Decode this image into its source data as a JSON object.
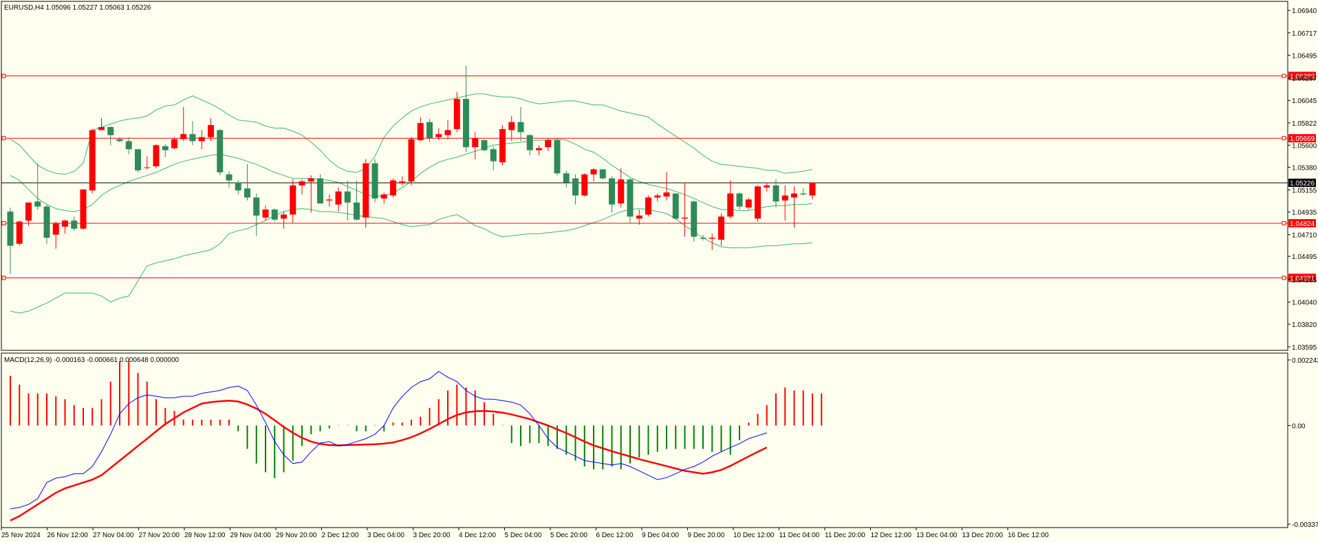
{
  "chart_data": {
    "type": "candlestick",
    "title": "EURUSD,H4  1.05096 1.05227 1.05063 1.05226",
    "price_axis": {
      "range": [
        1.0356,
        1.0703
      ],
      "ticks": [
        "1.06940",
        "1.06717",
        "1.06495",
        "1.06267",
        "1.06045",
        "1.05822",
        "1.05600",
        "1.05380",
        "1.05155",
        "1.04935",
        "1.04710",
        "1.04495",
        "1.04265",
        "1.04040",
        "1.03820",
        "1.03595"
      ]
    },
    "current_price": {
      "value": 1.05226,
      "label": "1.05226",
      "color": "#000000"
    },
    "horizontal_levels": [
      {
        "value": 1.06289,
        "label": "1.06289"
      },
      {
        "value": 1.05669,
        "label": "1.05669"
      },
      {
        "value": 1.04824,
        "label": "1.04824"
      },
      {
        "value": 1.04281,
        "label": "1.04281"
      }
    ],
    "level_color": "#FF0000",
    "bull_color": "#FF0000",
    "bear_color": "#2E8B57",
    "bollinger_color": "#3CB371",
    "time_labels": [
      "25 Nov 2024",
      "26 Nov 12:00",
      "27 Nov 04:00",
      "27 Nov 20:00",
      "28 Nov 12:00",
      "29 Nov 04:00",
      "29 Nov 20:00",
      "2 Dec 12:00",
      "3 Dec 04:00",
      "3 Dec 20:00",
      "4 Dec 12:00",
      "5 Dec 04:00",
      "5 Dec 20:00",
      "6 Dec 12:00",
      "9 Dec 04:00",
      "9 Dec 20:00",
      "10 Dec 12:00",
      "11 Dec 04:00",
      "11 Dec 20:00",
      "12 Dec 12:00",
      "13 Dec 04:00",
      "13 Dec 20:00",
      "16 Dec 12:00"
    ],
    "candles": [
      {
        "o": 1.0494,
        "h": 1.0498,
        "l": 1.0432,
        "c": 1.046
      },
      {
        "o": 1.0462,
        "h": 1.0485,
        "l": 1.046,
        "c": 1.0484
      },
      {
        "o": 1.0485,
        "h": 1.0503,
        "l": 1.048,
        "c": 1.0503
      },
      {
        "o": 1.0504,
        "h": 1.0542,
        "l": 1.0496,
        "c": 1.0499
      },
      {
        "o": 1.0499,
        "h": 1.0501,
        "l": 1.0462,
        "c": 1.0468
      },
      {
        "o": 1.0471,
        "h": 1.0484,
        "l": 1.0457,
        "c": 1.0482
      },
      {
        "o": 1.0479,
        "h": 1.0486,
        "l": 1.0472,
        "c": 1.0485
      },
      {
        "o": 1.0485,
        "h": 1.0489,
        "l": 1.0475,
        "c": 1.0477
      },
      {
        "o": 1.0477,
        "h": 1.0516,
        "l": 1.0476,
        "c": 1.0516
      },
      {
        "o": 1.0515,
        "h": 1.0576,
        "l": 1.0512,
        "c": 1.0575
      },
      {
        "o": 1.0575,
        "h": 1.0587,
        "l": 1.0575,
        "c": 1.0578
      },
      {
        "o": 1.0578,
        "h": 1.0579,
        "l": 1.056,
        "c": 1.057
      },
      {
        "o": 1.0566,
        "h": 1.0568,
        "l": 1.0563,
        "c": 1.0564
      },
      {
        "o": 1.0564,
        "h": 1.0568,
        "l": 1.0551,
        "c": 1.0556
      },
      {
        "o": 1.0556,
        "h": 1.0556,
        "l": 1.0533,
        "c": 1.0535
      },
      {
        "o": 1.0538,
        "h": 1.0549,
        "l": 1.0536,
        "c": 1.0538
      },
      {
        "o": 1.0539,
        "h": 1.0561,
        "l": 1.0537,
        "c": 1.056
      },
      {
        "o": 1.0559,
        "h": 1.0561,
        "l": 1.0548,
        "c": 1.0555
      },
      {
        "o": 1.0557,
        "h": 1.0568,
        "l": 1.0556,
        "c": 1.0566
      },
      {
        "o": 1.0566,
        "h": 1.0598,
        "l": 1.0564,
        "c": 1.0571
      },
      {
        "o": 1.0571,
        "h": 1.0584,
        "l": 1.056,
        "c": 1.0564
      },
      {
        "o": 1.0564,
        "h": 1.0575,
        "l": 1.0556,
        "c": 1.0568
      },
      {
        "o": 1.0568,
        "h": 1.0587,
        "l": 1.0564,
        "c": 1.058
      },
      {
        "o": 1.0575,
        "h": 1.0576,
        "l": 1.053,
        "c": 1.0533
      },
      {
        "o": 1.0531,
        "h": 1.0534,
        "l": 1.0518,
        "c": 1.0525
      },
      {
        "o": 1.0523,
        "h": 1.0525,
        "l": 1.0511,
        "c": 1.0515
      },
      {
        "o": 1.0517,
        "h": 1.0541,
        "l": 1.0505,
        "c": 1.0508
      },
      {
        "o": 1.0508,
        "h": 1.0512,
        "l": 1.047,
        "c": 1.049
      },
      {
        "o": 1.0488,
        "h": 1.05,
        "l": 1.0485,
        "c": 1.0496
      },
      {
        "o": 1.0496,
        "h": 1.0497,
        "l": 1.0484,
        "c": 1.0486
      },
      {
        "o": 1.0487,
        "h": 1.0494,
        "l": 1.0477,
        "c": 1.0491
      },
      {
        "o": 1.0491,
        "h": 1.0526,
        "l": 1.0483,
        "c": 1.052
      },
      {
        "o": 1.052,
        "h": 1.0526,
        "l": 1.0511,
        "c": 1.0524
      },
      {
        "o": 1.0524,
        "h": 1.053,
        "l": 1.0493,
        "c": 1.0527
      },
      {
        "o": 1.0527,
        "h": 1.0531,
        "l": 1.0502,
        "c": 1.0502
      },
      {
        "o": 1.0505,
        "h": 1.0511,
        "l": 1.0499,
        "c": 1.0506
      },
      {
        "o": 1.0501,
        "h": 1.0518,
        "l": 1.0494,
        "c": 1.0514
      },
      {
        "o": 1.0514,
        "h": 1.0525,
        "l": 1.0485,
        "c": 1.0503
      },
      {
        "o": 1.0503,
        "h": 1.0525,
        "l": 1.0485,
        "c": 1.0486
      },
      {
        "o": 1.0488,
        "h": 1.0546,
        "l": 1.0478,
        "c": 1.0542
      },
      {
        "o": 1.0542,
        "h": 1.0546,
        "l": 1.0503,
        "c": 1.0507
      },
      {
        "o": 1.0507,
        "h": 1.0513,
        "l": 1.0502,
        "c": 1.0511
      },
      {
        "o": 1.051,
        "h": 1.0527,
        "l": 1.0508,
        "c": 1.0525
      },
      {
        "o": 1.0522,
        "h": 1.0529,
        "l": 1.052,
        "c": 1.0524
      },
      {
        "o": 1.0524,
        "h": 1.0568,
        "l": 1.052,
        "c": 1.0566
      },
      {
        "o": 1.0565,
        "h": 1.0588,
        "l": 1.0564,
        "c": 1.0582
      },
      {
        "o": 1.0583,
        "h": 1.0586,
        "l": 1.0563,
        "c": 1.0567
      },
      {
        "o": 1.0568,
        "h": 1.0577,
        "l": 1.0565,
        "c": 1.0571
      },
      {
        "o": 1.057,
        "h": 1.0585,
        "l": 1.0566,
        "c": 1.0575
      },
      {
        "o": 1.0576,
        "h": 1.0613,
        "l": 1.0573,
        "c": 1.0606
      },
      {
        "o": 1.0606,
        "h": 1.0639,
        "l": 1.0553,
        "c": 1.0558
      },
      {
        "o": 1.0558,
        "h": 1.0573,
        "l": 1.0546,
        "c": 1.0567
      },
      {
        "o": 1.0565,
        "h": 1.0566,
        "l": 1.0554,
        "c": 1.0555
      },
      {
        "o": 1.0556,
        "h": 1.0559,
        "l": 1.0535,
        "c": 1.0544
      },
      {
        "o": 1.0543,
        "h": 1.058,
        "l": 1.054,
        "c": 1.0576
      },
      {
        "o": 1.0575,
        "h": 1.0589,
        "l": 1.0564,
        "c": 1.0583
      },
      {
        "o": 1.0583,
        "h": 1.0598,
        "l": 1.0564,
        "c": 1.0573
      },
      {
        "o": 1.057,
        "h": 1.0571,
        "l": 1.055,
        "c": 1.0555
      },
      {
        "o": 1.0555,
        "h": 1.056,
        "l": 1.055,
        "c": 1.0557
      },
      {
        "o": 1.0558,
        "h": 1.0567,
        "l": 1.0554,
        "c": 1.0565
      },
      {
        "o": 1.0565,
        "h": 1.0567,
        "l": 1.053,
        "c": 1.0532
      },
      {
        "o": 1.0532,
        "h": 1.0535,
        "l": 1.0518,
        "c": 1.0523
      },
      {
        "o": 1.0527,
        "h": 1.0531,
        "l": 1.0501,
        "c": 1.051
      },
      {
        "o": 1.051,
        "h": 1.0532,
        "l": 1.0509,
        "c": 1.0531
      },
      {
        "o": 1.0531,
        "h": 1.0537,
        "l": 1.0524,
        "c": 1.0536
      },
      {
        "o": 1.0536,
        "h": 1.0536,
        "l": 1.0526,
        "c": 1.0527
      },
      {
        "o": 1.0527,
        "h": 1.0529,
        "l": 1.0493,
        "c": 1.0501
      },
      {
        "o": 1.0502,
        "h": 1.0537,
        "l": 1.0498,
        "c": 1.0526
      },
      {
        "o": 1.0526,
        "h": 1.0527,
        "l": 1.0483,
        "c": 1.0489
      },
      {
        "o": 1.0487,
        "h": 1.0496,
        "l": 1.0481,
        "c": 1.049
      },
      {
        "o": 1.0491,
        "h": 1.051,
        "l": 1.0489,
        "c": 1.0508
      },
      {
        "o": 1.0508,
        "h": 1.0512,
        "l": 1.0504,
        "c": 1.051
      },
      {
        "o": 1.0509,
        "h": 1.0533,
        "l": 1.0505,
        "c": 1.0513
      },
      {
        "o": 1.0512,
        "h": 1.0512,
        "l": 1.0486,
        "c": 1.0487
      },
      {
        "o": 1.0487,
        "h": 1.0522,
        "l": 1.0469,
        "c": 1.0488
      },
      {
        "o": 1.0504,
        "h": 1.0505,
        "l": 1.0464,
        "c": 1.0469
      },
      {
        "o": 1.0468,
        "h": 1.0471,
        "l": 1.0465,
        "c": 1.0467
      },
      {
        "o": 1.0467,
        "h": 1.0472,
        "l": 1.0456,
        "c": 1.0468
      },
      {
        "o": 1.0466,
        "h": 1.0492,
        "l": 1.046,
        "c": 1.0489
      },
      {
        "o": 1.0489,
        "h": 1.0525,
        "l": 1.0487,
        "c": 1.0512
      },
      {
        "o": 1.0512,
        "h": 1.0513,
        "l": 1.0496,
        "c": 1.0499
      },
      {
        "o": 1.0498,
        "h": 1.0508,
        "l": 1.0496,
        "c": 1.0506
      },
      {
        "o": 1.0487,
        "h": 1.052,
        "l": 1.0484,
        "c": 1.0519
      },
      {
        "o": 1.0518,
        "h": 1.0522,
        "l": 1.0514,
        "c": 1.052
      },
      {
        "o": 1.052,
        "h": 1.0526,
        "l": 1.0498,
        "c": 1.0504
      },
      {
        "o": 1.0505,
        "h": 1.052,
        "l": 1.0485,
        "c": 1.051
      },
      {
        "o": 1.0508,
        "h": 1.0519,
        "l": 1.0478,
        "c": 1.0512
      },
      {
        "o": 1.0512,
        "h": 1.0517,
        "l": 1.051,
        "c": 1.0511
      },
      {
        "o": 1.051,
        "h": 1.0523,
        "l": 1.0506,
        "c": 1.0523
      }
    ],
    "bollinger_upper": [
      1.0566,
      1.056,
      1.055,
      1.054,
      1.0535,
      1.0532,
      1.0531,
      1.0534,
      1.0542,
      1.0575,
      1.0578,
      1.0581,
      1.0584,
      1.0586,
      1.0587,
      1.0589,
      1.0595,
      1.0599,
      1.06,
      1.0605,
      1.0609,
      1.0605,
      1.0601,
      1.0596,
      1.059,
      1.0585,
      1.0584,
      1.0583,
      1.0579,
      1.0577,
      1.0577,
      1.0574,
      1.057,
      1.0563,
      1.0555,
      1.0545,
      1.0538,
      1.0534,
      1.0533,
      1.0537,
      1.0549,
      1.0568,
      1.0579,
      1.0587,
      1.0594,
      1.0598,
      1.0601,
      1.0603,
      1.0605,
      1.0607,
      1.0609,
      1.0611,
      1.0611,
      1.0609,
      1.0608,
      1.0608,
      1.0606,
      1.0603,
      1.0601,
      1.0602,
      1.0603,
      1.0604,
      1.0604,
      1.0602,
      1.06,
      1.06,
      1.0597,
      1.0594,
      1.0592,
      1.059,
      1.0588,
      1.0581,
      1.0575,
      1.0569,
      1.0563,
      1.0557,
      1.055,
      1.0544,
      1.0541,
      1.054,
      1.0539,
      1.0538,
      1.0537,
      1.0535,
      1.0535,
      1.0532,
      1.0533,
      1.0534,
      1.0536
    ],
    "bollinger_middle": [
      1.053,
      1.0525,
      1.0516,
      1.0507,
      1.0501,
      1.0497,
      1.0495,
      1.0494,
      1.0496,
      1.0501,
      1.051,
      1.0516,
      1.052,
      1.0524,
      1.0527,
      1.053,
      1.0533,
      1.0537,
      1.0541,
      1.0544,
      1.0546,
      1.0548,
      1.055,
      1.0551,
      1.0549,
      1.0547,
      1.0544,
      1.0541,
      1.0537,
      1.0533,
      1.053,
      1.0527,
      1.0527,
      1.0527,
      1.0526,
      1.0525,
      1.0523,
      1.0519,
      1.0515,
      1.0511,
      1.0509,
      1.051,
      1.0512,
      1.0518,
      1.0524,
      1.0532,
      1.0538,
      1.0543,
      1.0546,
      1.0548,
      1.0551,
      1.0554,
      1.0557,
      1.056,
      1.0561,
      1.0562,
      1.0563,
      1.0564,
      1.0565,
      1.0565,
      1.0566,
      1.0565,
      1.0561,
      1.0556,
      1.0553,
      1.0547,
      1.054,
      1.0534,
      1.0528,
      1.0524,
      1.0521,
      1.0519,
      1.0517,
      1.0514,
      1.0511,
      1.0507,
      1.0503,
      1.0499,
      1.0496,
      1.0496,
      1.0495,
      1.0495,
      1.0497,
      1.0499,
      1.05,
      1.05,
      1.0501,
      1.0501,
      1.0502
    ],
    "bollinger_lower": [
      1.0395,
      1.0393,
      1.0395,
      1.0399,
      1.0403,
      1.0408,
      1.0413,
      1.0413,
      1.0413,
      1.0413,
      1.041,
      1.0404,
      1.0408,
      1.041,
      1.0425,
      1.044,
      1.0443,
      1.0445,
      1.0447,
      1.045,
      1.0452,
      1.0454,
      1.0456,
      1.0462,
      1.0472,
      1.0475,
      1.0477,
      1.0481,
      1.0485,
      1.049,
      1.0494,
      1.0496,
      1.0497,
      1.0496,
      1.0494,
      1.0494,
      1.0493,
      1.0492,
      1.049,
      1.0489,
      1.0488,
      1.0487,
      1.0484,
      1.0481,
      1.0479,
      1.048,
      1.0481,
      1.0486,
      1.0489,
      1.0491,
      1.0486,
      1.048,
      1.0477,
      1.0472,
      1.0469,
      1.047,
      1.0471,
      1.0472,
      1.0472,
      1.0473,
      1.0474,
      1.0475,
      1.0477,
      1.048,
      1.0483,
      1.0486,
      1.049,
      1.0494,
      1.0496,
      1.0497,
      1.0496,
      1.0494,
      1.0492,
      1.0487,
      1.048,
      1.0474,
      1.0468,
      1.0463,
      1.0459,
      1.0458,
      1.0458,
      1.0458,
      1.0459,
      1.046,
      1.046,
      1.0461,
      1.0462,
      1.0462,
      1.0463
    ],
    "macd": {
      "label": "MACD(12,26,9) -0.000163 -0.000661 0.000648 0.000000",
      "range": [
        -0.003374,
        0.002243
      ],
      "ticks": [
        "0.002243",
        "0.00",
        "-0.003374"
      ],
      "histogram_pos_color": "#FF0000",
      "histogram_neg_color": "#008000",
      "signal_color": "#FF0000",
      "macd_line_color": "#0000FF",
      "histogram": [
        0.0017,
        0.0014,
        0.0011,
        0.0011,
        0.0011,
        0.001,
        0.0009,
        0.0007,
        0.0006,
        0.0006,
        0.0009,
        0.0015,
        0.0022,
        0.0022,
        0.0018,
        0.0015,
        0.0009,
        0.0006,
        0.0005,
        0.0002,
        0.0002,
        0.0002,
        0.0002,
        0.0002,
        0.0002,
        -0.0002,
        -0.0008,
        -0.0013,
        -0.0016,
        -0.0018,
        -0.0016,
        -0.0012,
        -0.0007,
        -0.0003,
        -0.0002,
        -0.0001,
        0.0,
        0.0,
        -0.0002,
        -0.0002,
        0.0,
        -0.0002,
        0.0001,
        0.0001,
        0.0002,
        0.0003,
        0.0006,
        0.0009,
        0.0012,
        0.0014,
        0.0013,
        0.0012,
        0.0008,
        0.0004,
        0.0,
        -0.0006,
        -0.0007,
        -0.0006,
        -0.0006,
        -0.0007,
        -0.0008,
        -0.001,
        -0.0012,
        -0.0014,
        -0.0015,
        -0.0015,
        -0.0014,
        -0.0015,
        -0.0013,
        -0.0011,
        -0.001,
        -0.0009,
        -0.0008,
        -0.0008,
        -0.0008,
        -0.0008,
        -0.0008,
        -0.0009,
        -0.0009,
        -0.001,
        -0.0005,
        0.0001,
        0.0004,
        0.0007,
        0.0011,
        0.0013,
        0.0012,
        0.0012,
        0.0011,
        0.0011
      ],
      "signal": [
        -0.00325,
        -0.0031,
        -0.0029,
        -0.0027,
        -0.0025,
        -0.0023,
        -0.00215,
        -0.00205,
        -0.00195,
        -0.00185,
        -0.0017,
        -0.00145,
        -0.0012,
        -0.00095,
        -0.0007,
        -0.00045,
        -0.0002,
        5e-05,
        0.00025,
        0.00045,
        0.0006,
        0.00075,
        0.0008,
        0.00083,
        0.00085,
        0.00082,
        0.00072,
        0.00058,
        0.0004,
        0.00018,
        -5e-05,
        -0.00025,
        -0.00042,
        -0.00055,
        -0.00063,
        -0.00067,
        -0.00068,
        -0.00067,
        -0.00066,
        -0.00065,
        -0.00064,
        -0.00062,
        -0.00058,
        -0.0005,
        -0.0004,
        -0.00027,
        -0.00012,
        5e-05,
        0.00022,
        0.00036,
        0.00045,
        0.00049,
        0.0005,
        0.00048,
        0.00044,
        0.00038,
        0.0003,
        0.00022,
        0.00011,
        0.0,
        -0.00013,
        -0.00026,
        -0.0004,
        -0.00055,
        -0.00068,
        -0.00078,
        -0.00088,
        -0.00097,
        -0.00106,
        -0.00115,
        -0.00123,
        -0.00131,
        -0.00139,
        -0.00147,
        -0.00155,
        -0.0016,
        -0.00165,
        -0.0016,
        -0.00152,
        -0.00138,
        -0.00122,
        -0.00106,
        -0.0009,
        -0.00075
      ],
      "macd_line": [
        -0.00285,
        -0.0028,
        -0.0027,
        -0.0025,
        -0.00195,
        -0.0018,
        -0.00175,
        -0.00165,
        -0.00165,
        -0.0014,
        -0.0009,
        -0.0003,
        0.0004,
        0.00075,
        0.00095,
        0.00105,
        0.001,
        0.00095,
        0.00095,
        0.001,
        0.001,
        0.0011,
        0.00115,
        0.0012,
        0.0013,
        0.00135,
        0.0012,
        0.0007,
        0.0001,
        -0.00055,
        -0.001,
        -0.0013,
        -0.00125,
        -0.0009,
        -0.0006,
        -0.00055,
        -0.0007,
        -0.00065,
        -0.00055,
        -0.00045,
        -0.0003,
        0.0,
        0.0006,
        0.001,
        0.0013,
        0.0015,
        0.0016,
        0.00185,
        0.00165,
        0.0015,
        0.0012,
        0.001,
        0.0009,
        0.0009,
        0.00085,
        0.0008,
        0.0007,
        0.0004,
        0.0,
        -0.00045,
        -0.00075,
        -0.0009,
        -0.00105,
        -0.0012,
        -0.00125,
        -0.0013,
        -0.00135,
        -0.0013,
        -0.0014,
        -0.00155,
        -0.0017,
        -0.00185,
        -0.00178,
        -0.00165,
        -0.0015,
        -0.0014,
        -0.00125,
        -0.00105,
        -0.0009,
        -0.00075,
        -0.00062,
        -0.00045,
        -0.00035,
        -0.00025
      ]
    }
  }
}
